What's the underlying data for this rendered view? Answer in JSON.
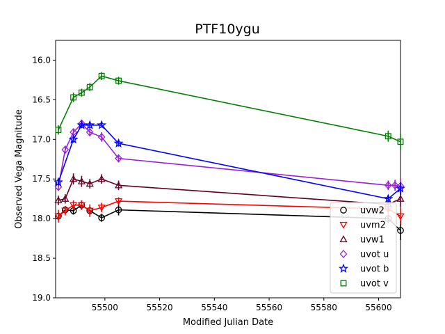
{
  "chart_data": {
    "type": "line",
    "title": "PTF10ygu",
    "xlabel": "Modified Julian Date",
    "ylabel": "Observed Vega Magnitude",
    "xlim": [
      55482,
      55608
    ],
    "ylim": [
      19.0,
      15.75
    ],
    "y_inverted": true,
    "xticks": [
      55500,
      55520,
      55540,
      55560,
      55580,
      55600
    ],
    "yticks": [
      16.0,
      16.5,
      17.0,
      17.5,
      18.0,
      18.5,
      19.0
    ],
    "grid": false,
    "legend_position": "lower right",
    "series": [
      {
        "name": "uvw2",
        "color": "#000000",
        "marker": "circle",
        "x": [
          55483,
          55485.5,
          55488.5,
          55491.5,
          55494.5,
          55498.8,
          55505,
          55603.5,
          55608
        ],
        "y": [
          17.97,
          17.89,
          17.9,
          17.83,
          17.9,
          17.99,
          17.89,
          18.0,
          18.15
        ],
        "err": [
          0.05,
          0.05,
          0.05,
          0.06,
          0.06,
          0.05,
          0.07,
          0.06,
          0.12
        ]
      },
      {
        "name": "uvm2",
        "color": "#ff0000",
        "marker": "triangle-down",
        "x": [
          55483,
          55485.5,
          55488.5,
          55491.5,
          55494.5,
          55498.8,
          55505,
          55603.5,
          55608
        ],
        "y": [
          17.97,
          17.9,
          17.83,
          17.83,
          17.9,
          17.86,
          17.78,
          17.88,
          17.97
        ],
        "err": [
          0.08,
          0.06,
          0.06,
          0.06,
          0.08,
          0.06,
          0.05,
          0.08,
          0.1
        ]
      },
      {
        "name": "uvw1",
        "color": "#660022",
        "marker": "triangle-up",
        "x": [
          55483,
          55485.5,
          55488.5,
          55491.5,
          55494.5,
          55498.8,
          55505,
          55603.5,
          55608
        ],
        "y": [
          17.77,
          17.75,
          17.5,
          17.53,
          17.56,
          17.5,
          17.58,
          17.82,
          17.75
        ],
        "err": [
          0.06,
          0.06,
          0.07,
          0.07,
          0.06,
          0.06,
          0.06,
          0.08,
          0.1
        ]
      },
      {
        "name": "uvot u",
        "color": "#9a1fd6",
        "marker": "diamond",
        "x": [
          55483,
          55485.5,
          55488.5,
          55491.5,
          55494.5,
          55498.8,
          55505,
          55603.5,
          55606,
          55608
        ],
        "y": [
          17.6,
          17.13,
          16.91,
          16.8,
          16.91,
          16.97,
          17.24,
          17.58,
          17.58,
          17.59
        ],
        "err": [
          0.05,
          0.05,
          0.05,
          0.05,
          0.05,
          0.06,
          0.05,
          0.06,
          0.07,
          0.1
        ]
      },
      {
        "name": "uvot b",
        "color": "#0000ff",
        "marker": "star",
        "x": [
          55483,
          55488.5,
          55491.5,
          55494.5,
          55498.8,
          55505,
          55603.5,
          55608
        ],
        "y": [
          17.54,
          17.0,
          16.82,
          16.82,
          16.82,
          17.05,
          17.75,
          17.62
        ],
        "err": [
          0.04,
          0.04,
          0.04,
          0.04,
          0.03,
          0.04,
          0.05,
          0.08
        ]
      },
      {
        "name": "uvot v",
        "color": "#008000",
        "marker": "square",
        "x": [
          55483,
          55488.5,
          55491.5,
          55494.5,
          55498.8,
          55505,
          55603.5,
          55608
        ],
        "y": [
          16.88,
          16.47,
          16.41,
          16.34,
          16.2,
          16.26,
          16.96,
          17.03
        ],
        "err": [
          0.06,
          0.06,
          0.05,
          0.05,
          0.05,
          0.05,
          0.07,
          0.1
        ]
      }
    ]
  }
}
